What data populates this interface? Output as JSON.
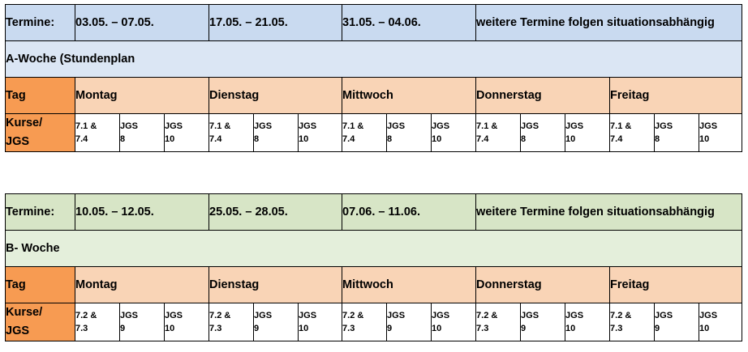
{
  "tables": [
    {
      "termine_label": "Termine:",
      "dates": [
        "03.05. – 07.05.",
        "17.05. – 21.05.",
        "31.05. – 04.06.",
        "weitere Termine folgen situationsabhängig"
      ],
      "week_label": "A-Woche (Stundenplan",
      "tag_label": "Tag",
      "days": [
        "Montag",
        "Dienstag",
        "Mittwoch",
        "Donnerstag",
        "Freitag"
      ],
      "kurse_label": "Kurse/\nJGS",
      "courses": [
        "7.1 &\n7.4",
        "JGS\n8",
        "JGS\n10"
      ]
    },
    {
      "termine_label": "Termine:",
      "dates": [
        "10.05. – 12.05.",
        "25.05. – 28.05.",
        "07.06. – 11.06.",
        "weitere Termine folgen situationsabhängig"
      ],
      "week_label": "B- Woche",
      "tag_label": "Tag",
      "days": [
        "Montag",
        "Dienstag",
        "Mittwoch",
        "Donnerstag",
        "Freitag"
      ],
      "kurse_label": "Kurse/\nJGS",
      "courses": [
        "7.2 &\n7.3",
        "JGS\n9",
        "JGS\n10"
      ]
    }
  ],
  "colors": {
    "a_header": "#c9daf0",
    "a_week": "#dbe6f4",
    "b_header": "#d7e5c6",
    "b_week": "#e4efdb",
    "day_row": "#f9d4b6",
    "label_col": "#f79b52"
  }
}
